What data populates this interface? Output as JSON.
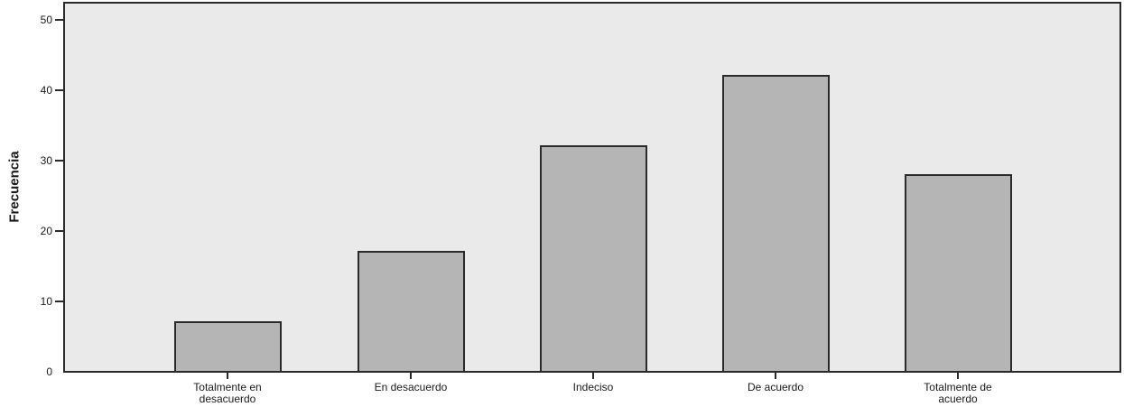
{
  "chart_data": {
    "type": "bar",
    "title": "",
    "xlabel": "",
    "ylabel": "Frecuencia",
    "categories": [
      "Totalmente en\ndesacuerdo",
      "En desacuerdo",
      "Indeciso",
      "De acuerdo",
      "Totalmente de\nacuerdo"
    ],
    "values": [
      7,
      17,
      32,
      42,
      28
    ],
    "yticks": [
      0,
      10,
      20,
      30,
      40,
      50
    ],
    "ylim": [
      0,
      52.7
    ],
    "grid": false,
    "legend": "none",
    "colors": {
      "bar_fill": "#b5b5b5",
      "bar_border": "#2a2a2a",
      "plot_background": "#eaeaea",
      "frame": "#2a2a2a",
      "page_background": "#ffffff",
      "text": "#1a1a1a"
    }
  }
}
